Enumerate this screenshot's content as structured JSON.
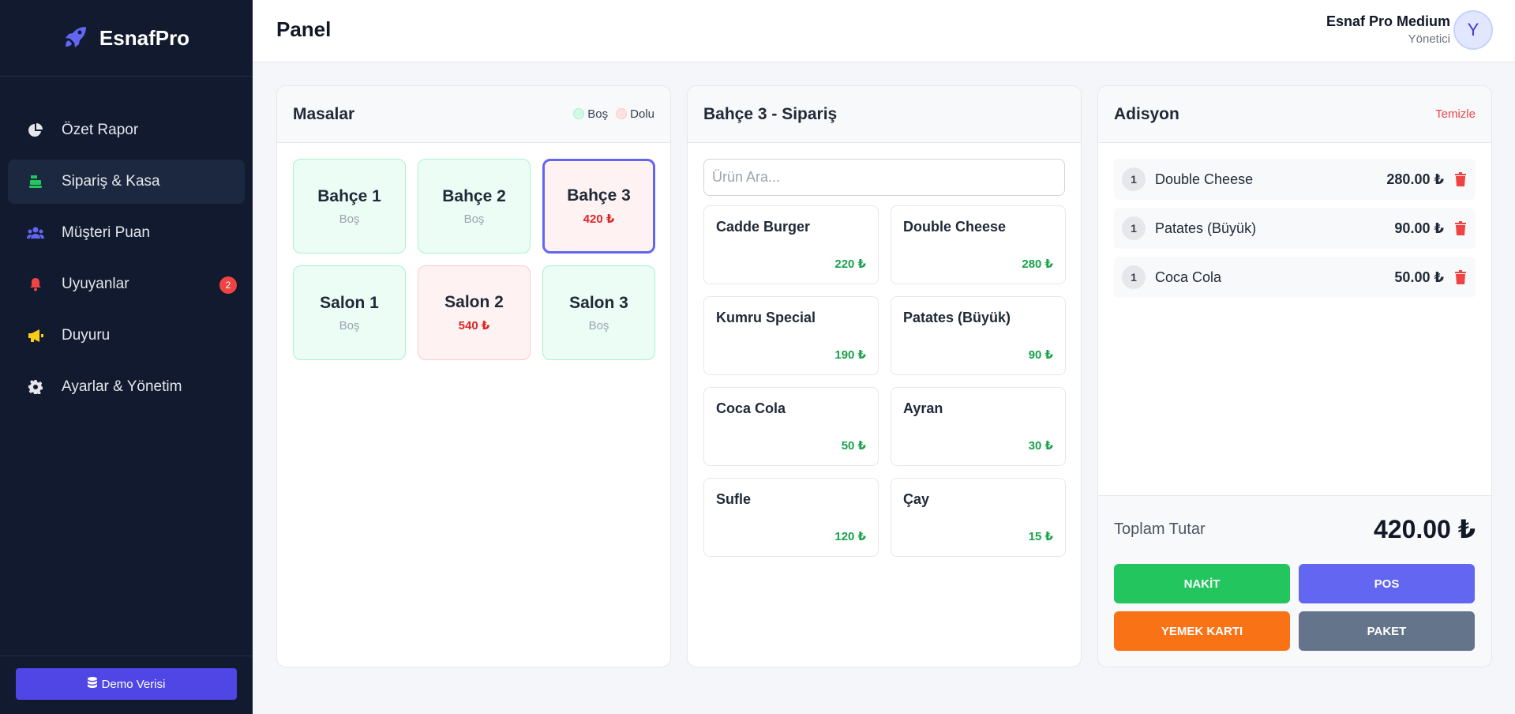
{
  "brand": {
    "name": "EsnafPro",
    "icon": "rocket-icon",
    "color": "#6366f1"
  },
  "sidebar": {
    "items": [
      {
        "label": "Özet Rapor",
        "icon": "pie-chart-icon",
        "icon_color": "#e5e7eb",
        "active": false
      },
      {
        "label": "Sipariş & Kasa",
        "icon": "cash-register-icon",
        "icon_color": "#22c55e",
        "active": true
      },
      {
        "label": "Müşteri Puan",
        "icon": "users-icon",
        "icon_color": "#6366f1",
        "active": false
      },
      {
        "label": "Uyuyanlar",
        "icon": "bell-icon",
        "icon_color": "#ef4444",
        "active": false,
        "badge": "2"
      },
      {
        "label": "Duyuru",
        "icon": "megaphone-icon",
        "icon_color": "#facc15",
        "active": false
      },
      {
        "label": "Ayarlar & Yönetim",
        "icon": "gear-icon",
        "icon_color": "#e5e7eb",
        "active": false
      }
    ],
    "demo_button": "Demo Verisi",
    "demo_icon": "database-icon"
  },
  "header": {
    "title": "Panel",
    "user_name": "Esnaf Pro Medium",
    "user_role": "Yönetici",
    "avatar_letter": "Y"
  },
  "tables_panel": {
    "title": "Masalar",
    "legend_empty": "Boş",
    "legend_full": "Dolu",
    "tables": [
      {
        "name": "Bahçe 1",
        "status": "Boş",
        "state": "empty"
      },
      {
        "name": "Bahçe 2",
        "status": "Boş",
        "state": "empty"
      },
      {
        "name": "Bahçe 3",
        "status": "420 ₺",
        "state": "full",
        "selected": true
      },
      {
        "name": "Salon 1",
        "status": "Boş",
        "state": "empty"
      },
      {
        "name": "Salon 2",
        "status": "540 ₺",
        "state": "full"
      },
      {
        "name": "Salon 3",
        "status": "Boş",
        "state": "empty"
      }
    ]
  },
  "order_panel": {
    "title": "Bahçe 3 - Sipariş",
    "search_placeholder": "Ürün Ara...",
    "products": [
      {
        "name": "Cadde Burger",
        "price": "220 ₺"
      },
      {
        "name": "Double Cheese",
        "price": "280 ₺"
      },
      {
        "name": "Kumru Special",
        "price": "190 ₺"
      },
      {
        "name": "Patates (Büyük)",
        "price": "90 ₺"
      },
      {
        "name": "Coca Cola",
        "price": "50 ₺"
      },
      {
        "name": "Ayran",
        "price": "30 ₺"
      },
      {
        "name": "Sufle",
        "price": "120 ₺"
      },
      {
        "name": "Çay",
        "price": "15 ₺"
      }
    ]
  },
  "bill_panel": {
    "title": "Adisyon",
    "clear_label": "Temizle",
    "items": [
      {
        "qty": "1",
        "name": "Double Cheese",
        "price": "280.00 ₺"
      },
      {
        "qty": "1",
        "name": "Patates (Büyük)",
        "price": "90.00 ₺"
      },
      {
        "qty": "1",
        "name": "Coca Cola",
        "price": "50.00 ₺"
      }
    ],
    "total_label": "Toplam Tutar",
    "total_value": "420.00 ₺",
    "pay_buttons": [
      {
        "label": "NAKİT",
        "color": "#22c55e"
      },
      {
        "label": "POS",
        "color": "#6366f1"
      },
      {
        "label": "YEMEK KARTI",
        "color": "#f97316"
      },
      {
        "label": "PAKET",
        "color": "#64748b"
      }
    ]
  },
  "colors": {
    "empty_dot": "#a7f3d0",
    "full_dot": "#fecaca",
    "trash": "#ef4444"
  }
}
